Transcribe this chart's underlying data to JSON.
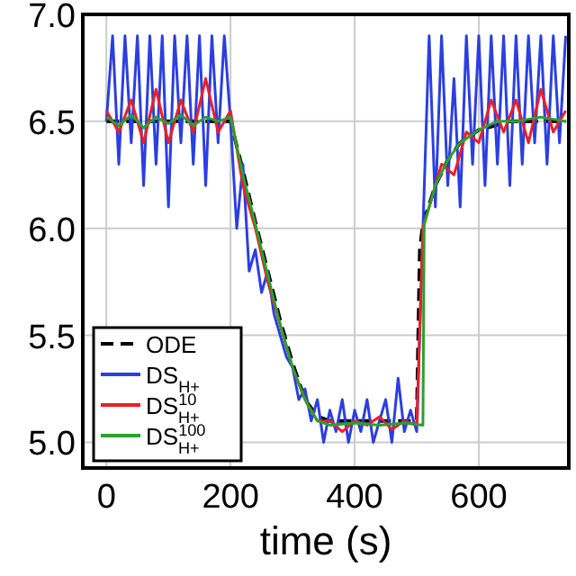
{
  "chart_data": {
    "type": "line",
    "xlabel": "time (s)",
    "xlim": [
      -38,
      745
    ],
    "xticks": [
      0,
      200,
      400,
      600
    ],
    "ylim": [
      4.88,
      7.0
    ],
    "yticks": [
      {
        "value": 5,
        "label": "5.0"
      },
      {
        "value": 5.5,
        "label": "5.5"
      },
      {
        "value": 6,
        "label": "6.0"
      },
      {
        "value": 6.5,
        "label": "6.5"
      },
      {
        "value": 7,
        "label": "7.0"
      }
    ],
    "grid": true,
    "legend": "bottom left",
    "series": [
      {
        "name": "ODE",
        "color": "#000000",
        "line_style": "dashed",
        "x": [
          0,
          200,
          220,
          240,
          260,
          280,
          300,
          320,
          340,
          360,
          500,
          505,
          510,
          530,
          550,
          570,
          600,
          650,
          740
        ],
        "values": [
          6.5,
          6.5,
          6.27,
          6.03,
          5.8,
          5.57,
          5.37,
          5.2,
          5.12,
          5.1,
          5.1,
          5.9,
          6.02,
          6.2,
          6.32,
          6.4,
          6.46,
          6.5,
          6.5
        ]
      },
      {
        "name": "DS$_{H+}$",
        "color": "#2b3fe0",
        "x": [
          0,
          10,
          20,
          30,
          40,
          50,
          60,
          70,
          80,
          90,
          100,
          110,
          120,
          130,
          140,
          150,
          160,
          170,
          180,
          190,
          200,
          210,
          220,
          230,
          240,
          250,
          260,
          270,
          280,
          290,
          300,
          310,
          320,
          330,
          340,
          350,
          360,
          370,
          380,
          390,
          400,
          410,
          420,
          430,
          440,
          450,
          460,
          470,
          480,
          490,
          500,
          510,
          520,
          530,
          540,
          550,
          560,
          570,
          580,
          590,
          600,
          610,
          620,
          630,
          640,
          650,
          660,
          670,
          680,
          690,
          700,
          710,
          720,
          730,
          740
        ],
        "values": [
          6.5,
          6.9,
          6.3,
          6.9,
          6.4,
          6.9,
          6.2,
          6.9,
          6.3,
          6.9,
          6.1,
          6.9,
          6.4,
          6.9,
          6.3,
          6.9,
          6.2,
          6.9,
          6.4,
          6.9,
          6.5,
          6.0,
          6.3,
          5.8,
          5.9,
          5.7,
          5.8,
          5.6,
          5.5,
          5.4,
          5.35,
          5.2,
          5.25,
          5.1,
          5.2,
          5.0,
          5.15,
          5.05,
          5.2,
          5.0,
          5.15,
          5.05,
          5.2,
          5.0,
          5.1,
          5.2,
          5.0,
          5.3,
          5.05,
          5.15,
          5.05,
          6.0,
          6.9,
          6.1,
          6.9,
          6.2,
          6.7,
          6.1,
          6.9,
          6.3,
          6.9,
          6.2,
          6.9,
          6.3,
          6.9,
          6.2,
          6.9,
          6.3,
          6.9,
          6.4,
          6.9,
          6.3,
          6.9,
          6.4,
          6.9
        ]
      },
      {
        "name": "DS$^{10}$$_{H+}$",
        "color": "#e8202a",
        "x": [
          0,
          20,
          40,
          60,
          80,
          100,
          120,
          140,
          160,
          180,
          200,
          220,
          240,
          260,
          280,
          300,
          320,
          340,
          360,
          380,
          400,
          420,
          440,
          460,
          480,
          500,
          510,
          520,
          540,
          560,
          580,
          600,
          620,
          640,
          660,
          680,
          700,
          720,
          740
        ],
        "values": [
          6.55,
          6.45,
          6.6,
          6.4,
          6.65,
          6.4,
          6.6,
          6.45,
          6.7,
          6.45,
          6.55,
          6.2,
          6.0,
          5.75,
          5.55,
          5.35,
          5.2,
          5.1,
          5.1,
          5.05,
          5.1,
          5.08,
          5.12,
          5.06,
          5.1,
          5.08,
          6.0,
          6.1,
          6.3,
          6.25,
          6.45,
          6.4,
          6.6,
          6.45,
          6.6,
          6.4,
          6.65,
          6.45,
          6.55
        ]
      },
      {
        "name": "DS$^{100}$$_{H+}$",
        "color": "#2ca02c",
        "x": [
          0,
          20,
          40,
          60,
          80,
          100,
          120,
          140,
          160,
          180,
          200,
          220,
          240,
          260,
          280,
          300,
          320,
          340,
          360,
          400,
          440,
          480,
          510,
          512,
          530,
          550,
          570,
          600,
          630,
          660,
          700,
          740
        ],
        "values": [
          6.52,
          6.48,
          6.53,
          6.47,
          6.52,
          6.49,
          6.53,
          6.48,
          6.52,
          6.5,
          6.52,
          6.25,
          6.02,
          5.78,
          5.55,
          5.35,
          5.2,
          5.1,
          5.08,
          5.09,
          5.08,
          5.09,
          5.08,
          6.02,
          6.2,
          6.32,
          6.4,
          6.46,
          6.5,
          6.5,
          6.52,
          6.5
        ]
      }
    ]
  }
}
